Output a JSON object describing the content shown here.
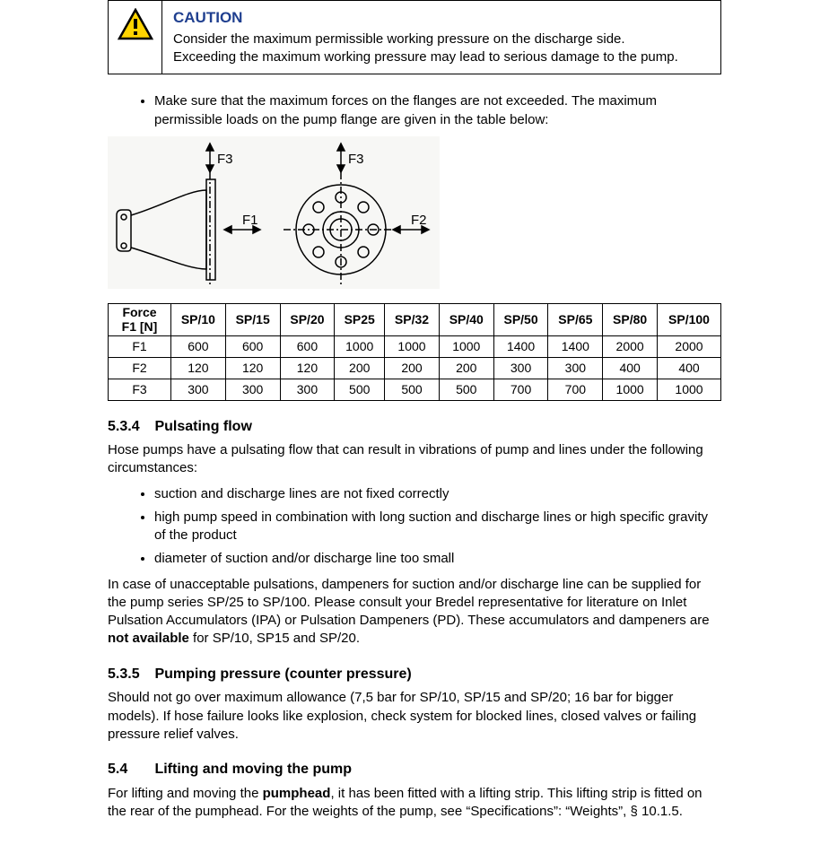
{
  "caution": {
    "title": "CAUTION",
    "line1": "Consider the maximum permissible working pressure on the discharge side.",
    "line2": "Exceeding the maximum working pressure may lead to serious damage to the pump.",
    "title_color": "#1f3f8f",
    "icon_border_color": "#000000",
    "icon_fill": "#ffd400"
  },
  "flange_note": "Make sure that the maximum forces on the flanges are not exceeded. The maximum permissible loads on the pump flange are given in the table below:",
  "diagram": {
    "labels": {
      "f1": "F1",
      "f2": "F2",
      "f3": "F3"
    },
    "stroke": "#000000",
    "bg": "#f7f7f5"
  },
  "force_table": {
    "header_label": "Force F1 [N]",
    "columns": [
      "SP/10",
      "SP/15",
      "SP/20",
      "SP25",
      "SP/32",
      "SP/40",
      "SP/50",
      "SP/65",
      "SP/80",
      "SP/100"
    ],
    "rows": [
      {
        "label": "F1",
        "values": [
          "600",
          "600",
          "600",
          "1000",
          "1000",
          "1000",
          "1400",
          "1400",
          "2000",
          "2000"
        ]
      },
      {
        "label": "F2",
        "values": [
          "120",
          "120",
          "120",
          "200",
          "200",
          "200",
          "300",
          "300",
          "400",
          "400"
        ]
      },
      {
        "label": "F3",
        "values": [
          "300",
          "300",
          "300",
          "500",
          "500",
          "500",
          "700",
          "700",
          "1000",
          "1000"
        ]
      }
    ],
    "border_color": "#000000"
  },
  "sec534": {
    "num": "5.3.4",
    "title": "Pulsating flow",
    "intro": "Hose pumps have a pulsating flow that can result in vibrations of pump and lines under the following circumstances:",
    "bullets": [
      "suction and discharge lines are not fixed correctly",
      "high pump speed in combination with long suction and discharge lines or high specific gravity of the product",
      "diameter of suction and/or discharge line too small"
    ],
    "para_a": "In case of unacceptable pulsations, dampeners for suction and/or discharge line can be supplied for the pump series SP/25 to SP/100. Please consult your Bredel representative for literature on Inlet Pulsation Accumulators (IPA) or Pulsation Dampeners (PD). These accumulators and dampeners are ",
    "para_bold": "not available",
    "para_b": " for SP/10, SP15 and SP/20."
  },
  "sec535": {
    "num": "5.3.5",
    "title": "Pumping pressure (counter pressure)",
    "body": "Should not go over maximum allowance (7,5 bar for SP/10, SP/15 and SP/20; 16 bar for bigger models). If hose failure looks like explosion, check system for blocked lines, closed valves or failing pressure relief valves."
  },
  "sec54": {
    "num": "5.4",
    "title": "Lifting and moving the pump",
    "body_a": "For lifting and moving the ",
    "body_bold": "pumphead",
    "body_b": ", it has been fitted with a lifting strip. This lifting strip is fitted on the rear of the pumphead. For the weights of the pump, see “Specifications”: “Weights”, § 10.1.5."
  }
}
